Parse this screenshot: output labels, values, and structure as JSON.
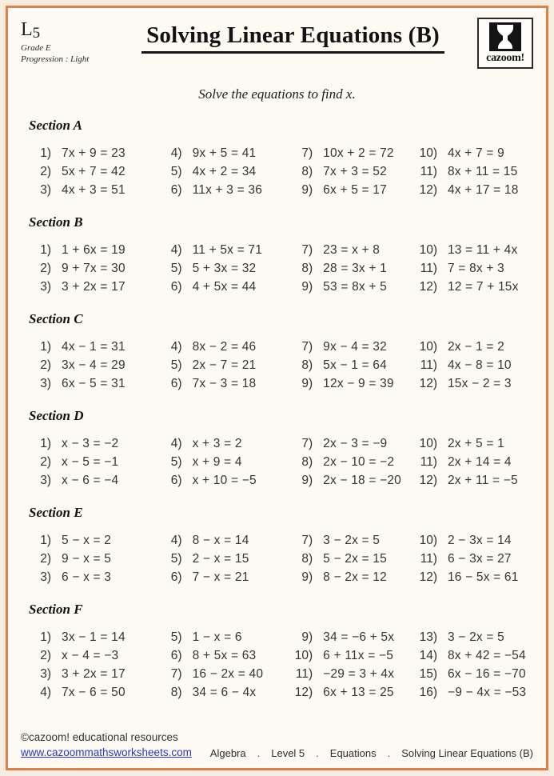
{
  "header": {
    "level_letter": "L",
    "level_number": "5",
    "grade": "Grade E",
    "progression": "Progression : Light",
    "title": "Solving Linear Equations (B)",
    "logo_text": "cazoom!",
    "instruction": "Solve the equations to find x."
  },
  "sections": [
    {
      "name": "Section A",
      "problems": [
        {
          "n": "1)",
          "eq": "7x + 9 = 23"
        },
        {
          "n": "2)",
          "eq": "5x + 7 = 42"
        },
        {
          "n": "3)",
          "eq": "4x + 3 = 51"
        },
        {
          "n": "4)",
          "eq": "9x + 5 = 41"
        },
        {
          "n": "5)",
          "eq": "4x + 2 = 34"
        },
        {
          "n": "6)",
          "eq": "11x + 3 = 36"
        },
        {
          "n": "7)",
          "eq": "10x + 2 = 72"
        },
        {
          "n": "8)",
          "eq": "7x + 3 = 52"
        },
        {
          "n": "9)",
          "eq": "6x + 5 = 17"
        },
        {
          "n": "10)",
          "eq": "4x + 7 = 9"
        },
        {
          "n": "11)",
          "eq": "8x + 11 = 15"
        },
        {
          "n": "12)",
          "eq": "4x + 17 = 18"
        }
      ]
    },
    {
      "name": "Section B",
      "problems": [
        {
          "n": "1)",
          "eq": "1 + 6x = 19"
        },
        {
          "n": "2)",
          "eq": "9 + 7x = 30"
        },
        {
          "n": "3)",
          "eq": "3 + 2x = 17"
        },
        {
          "n": "4)",
          "eq": "11 + 5x = 71"
        },
        {
          "n": "5)",
          "eq": "5 + 3x = 32"
        },
        {
          "n": "6)",
          "eq": "4 + 5x = 44"
        },
        {
          "n": "7)",
          "eq": "23 = x + 8"
        },
        {
          "n": "8)",
          "eq": "28 = 3x + 1"
        },
        {
          "n": "9)",
          "eq": "53 = 8x + 5"
        },
        {
          "n": "10)",
          "eq": "13 = 11 + 4x"
        },
        {
          "n": "11)",
          "eq": "7 = 8x + 3"
        },
        {
          "n": "12)",
          "eq": "12 = 7 + 15x"
        }
      ]
    },
    {
      "name": "Section C",
      "problems": [
        {
          "n": "1)",
          "eq": "4x − 1 = 31"
        },
        {
          "n": "2)",
          "eq": "3x − 4 = 29"
        },
        {
          "n": "3)",
          "eq": "6x − 5 = 31"
        },
        {
          "n": "4)",
          "eq": "8x − 2 = 46"
        },
        {
          "n": "5)",
          "eq": "2x − 7 = 21"
        },
        {
          "n": "6)",
          "eq": "7x − 3 = 18"
        },
        {
          "n": "7)",
          "eq": "9x − 4 = 32"
        },
        {
          "n": "8)",
          "eq": "5x − 1 = 64"
        },
        {
          "n": "9)",
          "eq": "12x − 9 = 39"
        },
        {
          "n": "10)",
          "eq": "2x − 1 = 2"
        },
        {
          "n": "11)",
          "eq": "4x − 8 = 10"
        },
        {
          "n": "12)",
          "eq": "15x − 2 = 3"
        }
      ]
    },
    {
      "name": "Section D",
      "problems": [
        {
          "n": "1)",
          "eq": "x − 3 = −2"
        },
        {
          "n": "2)",
          "eq": "x − 5 = −1"
        },
        {
          "n": "3)",
          "eq": "x − 6 = −4"
        },
        {
          "n": "4)",
          "eq": "x + 3 = 2"
        },
        {
          "n": "5)",
          "eq": "x + 9 = 4"
        },
        {
          "n": "6)",
          "eq": "x + 10 = −5"
        },
        {
          "n": "7)",
          "eq": "2x − 3 = −9"
        },
        {
          "n": "8)",
          "eq": "2x − 10 = −2"
        },
        {
          "n": "9)",
          "eq": "2x − 18 = −20"
        },
        {
          "n": "10)",
          "eq": "2x + 5 = 1"
        },
        {
          "n": "11)",
          "eq": "2x + 14 = 4"
        },
        {
          "n": "12)",
          "eq": "2x + 11 = −5"
        }
      ]
    },
    {
      "name": "Section E",
      "problems": [
        {
          "n": "1)",
          "eq": "5 − x = 2"
        },
        {
          "n": "2)",
          "eq": "9 − x = 5"
        },
        {
          "n": "3)",
          "eq": "6 − x = 3"
        },
        {
          "n": "4)",
          "eq": "8 − x = 14"
        },
        {
          "n": "5)",
          "eq": "2 − x = 15"
        },
        {
          "n": "6)",
          "eq": "7 − x = 21"
        },
        {
          "n": "7)",
          "eq": "3 − 2x = 5"
        },
        {
          "n": "8)",
          "eq": "5 − 2x = 15"
        },
        {
          "n": "9)",
          "eq": "8 − 2x = 12"
        },
        {
          "n": "10)",
          "eq": "2 − 3x = 14"
        },
        {
          "n": "11)",
          "eq": "6 − 3x = 27"
        },
        {
          "n": "12)",
          "eq": "16 − 5x = 61"
        }
      ]
    },
    {
      "name": "Section F",
      "problems": [
        {
          "n": "1)",
          "eq": "3x − 1 = 14"
        },
        {
          "n": "2)",
          "eq": "x − 4 = −3"
        },
        {
          "n": "3)",
          "eq": "3 + 2x = 17"
        },
        {
          "n": "4)",
          "eq": "7x − 6 = 50"
        },
        {
          "n": "5)",
          "eq": "1 − x = 6"
        },
        {
          "n": "6)",
          "eq": "8 + 5x = 63"
        },
        {
          "n": "7)",
          "eq": "16 − 2x = 40"
        },
        {
          "n": "8)",
          "eq": "34 = 6 − 4x"
        },
        {
          "n": "9)",
          "eq": "34 = −6 + 5x"
        },
        {
          "n": "10)",
          "eq": "6 + 11x = −5"
        },
        {
          "n": "11)",
          "eq": "−29 = 3 + 4x"
        },
        {
          "n": "12)",
          "eq": "6x + 13 = 25"
        },
        {
          "n": "13)",
          "eq": "3 − 2x = 5"
        },
        {
          "n": "14)",
          "eq": "8x + 42 = −54"
        },
        {
          "n": "15)",
          "eq": "6x − 16 = −70"
        },
        {
          "n": "16)",
          "eq": "−9 − 4x = −53"
        }
      ]
    }
  ],
  "footer": {
    "copyright": "©cazoom! educational resources",
    "url": "www.cazoommathsworksheets.com",
    "breadcrumb": [
      "Algebra",
      "Level 5",
      "Equations",
      "Solving Linear Equations (B)"
    ],
    "separator": "."
  }
}
